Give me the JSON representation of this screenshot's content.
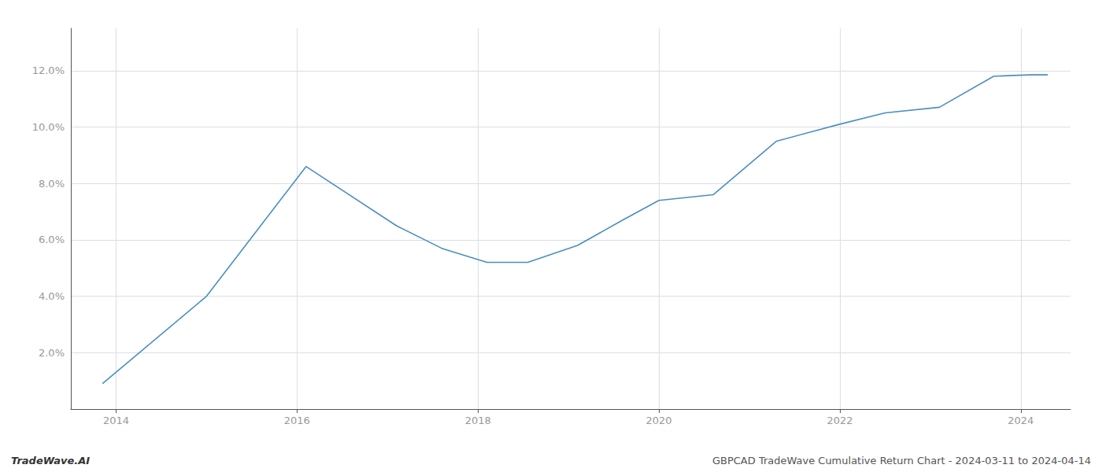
{
  "chart_data": {
    "type": "line",
    "x": [
      2013.85,
      2015.0,
      2016.1,
      2017.1,
      2017.6,
      2018.1,
      2018.55,
      2019.1,
      2019.6,
      2020.0,
      2020.6,
      2021.3,
      2022.0,
      2022.5,
      2023.1,
      2023.7,
      2024.1,
      2024.3
    ],
    "values": [
      0.009,
      0.04,
      0.086,
      0.065,
      0.057,
      0.052,
      0.052,
      0.058,
      0.067,
      0.074,
      0.076,
      0.095,
      0.101,
      0.105,
      0.107,
      0.118,
      0.1185,
      0.1185
    ],
    "color": "#4a8fc0",
    "xlim": [
      2013.5,
      2024.55
    ],
    "xticks": [
      2014,
      2016,
      2018,
      2020,
      2022,
      2024
    ],
    "ylim": [
      0.0,
      0.135
    ],
    "yticks": [
      {
        "value": 0.02,
        "label": "2.0%"
      },
      {
        "value": 0.04,
        "label": "4.0%"
      },
      {
        "value": 0.06,
        "label": "6.0%"
      },
      {
        "value": 0.08,
        "label": "8.0%"
      },
      {
        "value": 0.1,
        "label": "10.0%"
      },
      {
        "value": 0.12,
        "label": "12.0%"
      }
    ],
    "grid": true,
    "annotations": [
      "TradeWave.AI",
      "GBPCAD TradeWave Cumulative Return Chart - 2024-03-11 to 2024-04-14"
    ]
  }
}
